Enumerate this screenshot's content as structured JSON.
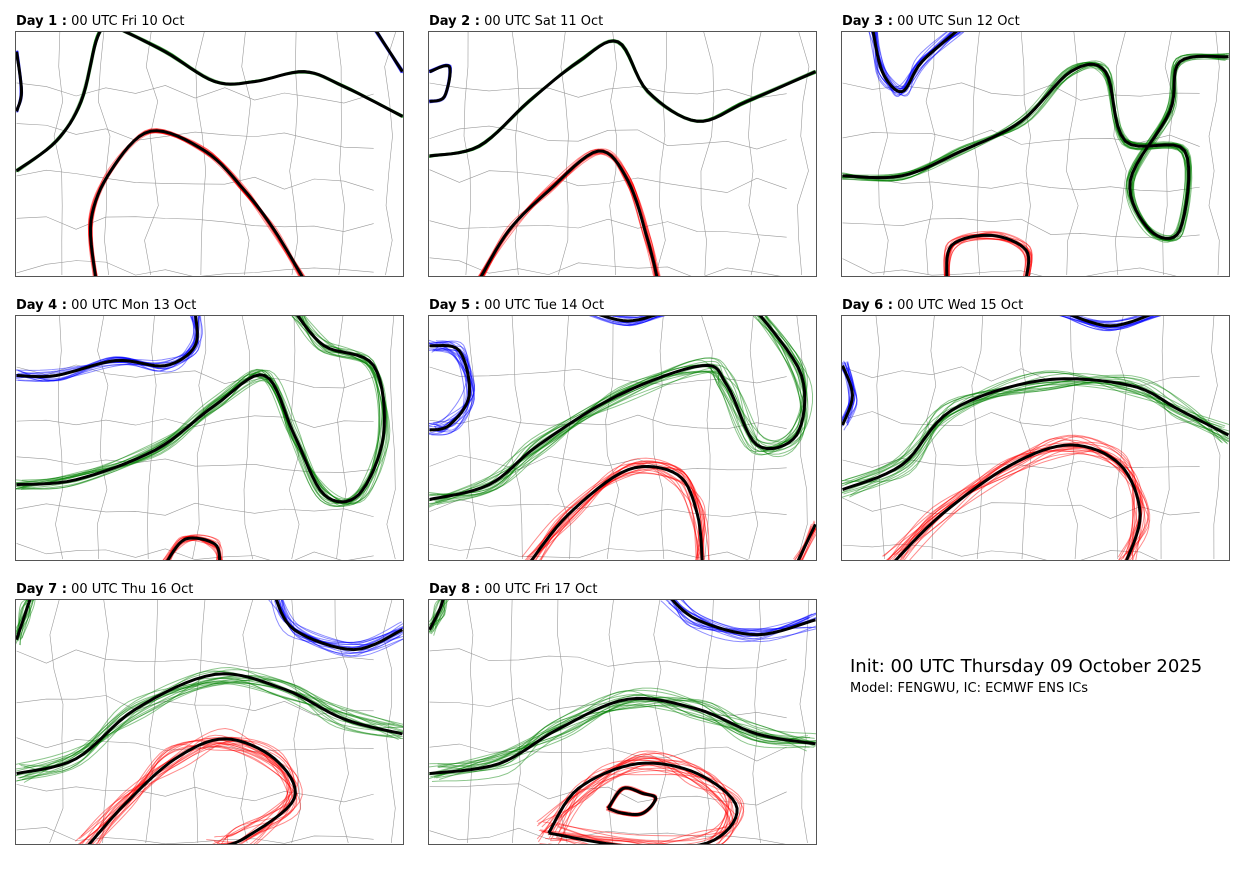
{
  "panels": [
    {
      "day_label": "Day 1 :",
      "time": "00 UTC Fri 10 Oct"
    },
    {
      "day_label": "Day 2 :",
      "time": "00 UTC Sat 11 Oct"
    },
    {
      "day_label": "Day 3 :",
      "time": "00 UTC Sun 12 Oct"
    },
    {
      "day_label": "Day 4 :",
      "time": "00 UTC Mon 13 Oct"
    },
    {
      "day_label": "Day 5 :",
      "time": "00 UTC Tue 14 Oct"
    },
    {
      "day_label": "Day 6 :",
      "time": "00 UTC Wed 15 Oct"
    },
    {
      "day_label": "Day 7 :",
      "time": "00 UTC Thu 16 Oct"
    },
    {
      "day_label": "Day 8 :",
      "time": "00 UTC Fri 17 Oct"
    }
  ],
  "info": {
    "init": "Init: 00 UTC Thursday 09 October 2025",
    "model": "Model: FENGWU, IC: ECMWF ENS ICs"
  },
  "colors": {
    "blue": "#0000ff",
    "green": "#008000",
    "red": "#ff0000",
    "mean": "#000000",
    "borders": "#999999"
  }
}
